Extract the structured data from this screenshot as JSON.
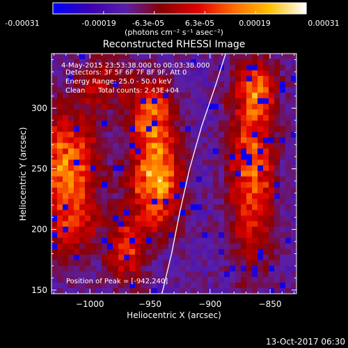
{
  "chart_data": {
    "type": "heatmap",
    "title": "Reconstructed RHESSI Image",
    "colorbar": {
      "tick_labels": [
        "-0.00031",
        "-0.00019",
        "-6.3e-05",
        "6.3e-05",
        "0.00019",
        "0.00031"
      ],
      "range": [
        -0.00031,
        0.00031
      ],
      "unit_label": "(photons cm⁻² s⁻¹ asec⁻²)",
      "colormap": [
        "#0000ff",
        "#3b00b0",
        "#5a1fa8",
        "#8a0000",
        "#e00000",
        "#ff6a00",
        "#ffc000",
        "#ffffff"
      ]
    },
    "annotations": {
      "time": "4-May-2015 23:53:38.000 to 00:03:38.000",
      "detectors": "Detectors: 3F 5F 6F 7F 8F 9F, Att 0",
      "energy": "Energy Range: 25.0 - 50.0 keV",
      "clean": "Clean",
      "counts": "Total counts: 2.43E+04",
      "peak": "Position of Peak = [-942,240]"
    },
    "footer_date": "13-Oct-2017 06:30",
    "xlabel": "Heliocentric X (arcsec)",
    "ylabel": "Heliocentric Y (arcsec)",
    "xlim": [
      -1032,
      -828
    ],
    "ylim": [
      147,
      345
    ],
    "x_ticks": [
      -1000,
      -950,
      -900,
      -850
    ],
    "y_ticks": [
      150,
      200,
      250,
      300
    ],
    "x_tick_labels": [
      "−1000",
      "−950",
      "−900",
      "−850"
    ],
    "y_tick_labels": [
      "150",
      "200",
      "250",
      "300"
    ],
    "peak": {
      "x": -942,
      "y": 240
    },
    "limb_curve": [
      [
        -940,
        147
      ],
      [
        -932,
        180
      ],
      [
        -925,
        215
      ],
      [
        -917,
        250
      ],
      [
        -907,
        285
      ],
      [
        -895,
        320
      ],
      [
        -887,
        345
      ]
    ],
    "bright_regions": [
      {
        "x": -1020,
        "y": 255,
        "sx": 18,
        "sy": 28,
        "amp": 0.00026
      },
      {
        "x": -1015,
        "y": 205,
        "sx": 14,
        "sy": 22,
        "amp": 0.00016
      },
      {
        "x": -945,
        "y": 240,
        "sx": 14,
        "sy": 26,
        "amp": 0.00031
      },
      {
        "x": -948,
        "y": 295,
        "sx": 12,
        "sy": 20,
        "amp": 0.00024
      },
      {
        "x": -970,
        "y": 185,
        "sx": 12,
        "sy": 20,
        "amp": 0.00018
      },
      {
        "x": -865,
        "y": 255,
        "sx": 13,
        "sy": 55,
        "amp": 0.00025
      },
      {
        "x": -860,
        "y": 315,
        "sx": 10,
        "sy": 14,
        "amp": 0.00015
      },
      {
        "x": -990,
        "y": 320,
        "sx": 16,
        "sy": 16,
        "amp": 0.00012
      }
    ]
  }
}
